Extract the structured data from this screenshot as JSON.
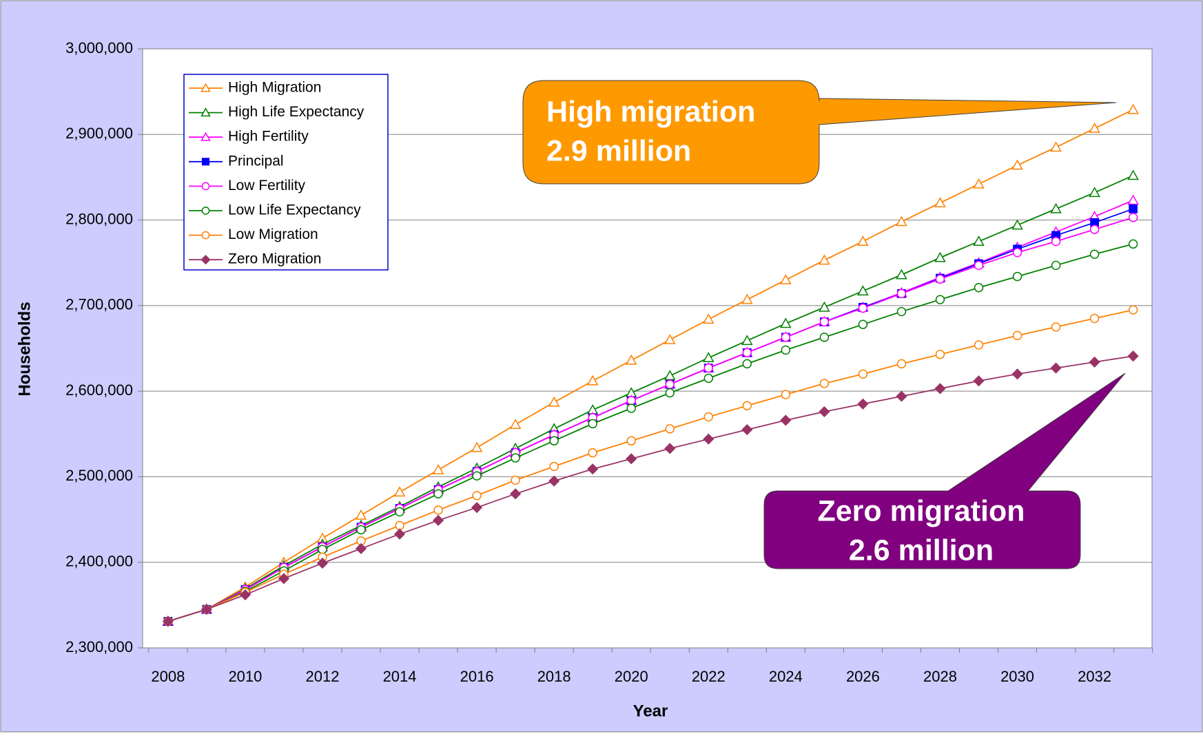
{
  "chart_data": {
    "type": "line",
    "x_label": "Year",
    "y_label": "Households",
    "categories": [
      "2008",
      null,
      "2010",
      null,
      "2012",
      null,
      "2014",
      null,
      "2016",
      null,
      "2018",
      null,
      "2020",
      null,
      "2022",
      null,
      "2024",
      null,
      "2026",
      null,
      "2028",
      null,
      "2030",
      null,
      "2032",
      null
    ],
    "ylim": [
      2300000,
      3000000
    ],
    "yticks": [
      {
        "value": 2300000,
        "label": "2,300,000"
      },
      {
        "value": 2400000,
        "label": "2,400,000"
      },
      {
        "value": 2500000,
        "label": "2,500,000"
      },
      {
        "value": 2600000,
        "label": "2,600,000"
      },
      {
        "value": 2700000,
        "label": "2,700,000"
      },
      {
        "value": 2800000,
        "label": "2,800,000"
      },
      {
        "value": 2900000,
        "label": "2,900,000"
      },
      {
        "value": 3000000,
        "label": "3,000,000"
      }
    ],
    "grid": true,
    "legend": "upper left",
    "series": [
      {
        "name": "High Migration",
        "color": "#ff8000",
        "marker": "triangle-open",
        "values": [
          2331000,
          2345000,
          2371000,
          2400000,
          2428000,
          2455000,
          2482000,
          2508000,
          2534000,
          2561000,
          2587000,
          2612000,
          2636000,
          2660000,
          2684000,
          2707000,
          2730000,
          2753000,
          2775000,
          2798000,
          2820000,
          2842000,
          2864000,
          2885000,
          2907000,
          2929000
        ]
      },
      {
        "name": "High Life Expectancy",
        "color": "#008000",
        "marker": "triangle-open",
        "values": [
          2331000,
          2345000,
          2369000,
          2396000,
          2421000,
          2443000,
          2465000,
          2488000,
          2510000,
          2533000,
          2556000,
          2578000,
          2598000,
          2618000,
          2639000,
          2659000,
          2679000,
          2698000,
          2717000,
          2736000,
          2756000,
          2775000,
          2794000,
          2813000,
          2832000,
          2852000
        ]
      },
      {
        "name": "High Fertility",
        "color": "#ff00ff",
        "marker": "triangle-open",
        "values": [
          2331000,
          2345000,
          2368000,
          2394000,
          2418000,
          2441000,
          2463000,
          2485000,
          2506000,
          2528000,
          2549000,
          2569000,
          2589000,
          2608000,
          2627000,
          2645000,
          2663000,
          2681000,
          2698000,
          2715000,
          2733000,
          2750000,
          2768000,
          2786000,
          2804000,
          2823000
        ]
      },
      {
        "name": "Principal",
        "color": "#0000ff",
        "marker": "square",
        "values": [
          2331000,
          2345000,
          2368000,
          2394000,
          2418000,
          2441000,
          2463000,
          2485000,
          2506000,
          2528000,
          2549000,
          2569000,
          2589000,
          2608000,
          2627000,
          2645000,
          2663000,
          2681000,
          2698000,
          2714000,
          2732000,
          2749000,
          2766000,
          2782000,
          2797000,
          2813000
        ]
      },
      {
        "name": "Low Fertility",
        "color": "#ff00ff",
        "marker": "circle-open",
        "values": [
          2331000,
          2345000,
          2368000,
          2394000,
          2418000,
          2441000,
          2463000,
          2485000,
          2506000,
          2528000,
          2549000,
          2569000,
          2589000,
          2608000,
          2627000,
          2645000,
          2663000,
          2681000,
          2697000,
          2714000,
          2731000,
          2747000,
          2762000,
          2775000,
          2789000,
          2803000
        ]
      },
      {
        "name": "Low Life Expectancy",
        "color": "#008000",
        "marker": "circle-open",
        "values": [
          2331000,
          2345000,
          2366000,
          2390000,
          2415000,
          2438000,
          2459000,
          2480000,
          2501000,
          2522000,
          2542000,
          2562000,
          2580000,
          2598000,
          2615000,
          2632000,
          2648000,
          2663000,
          2678000,
          2693000,
          2707000,
          2721000,
          2734000,
          2747000,
          2760000,
          2772000
        ]
      },
      {
        "name": "Low Migration",
        "color": "#ff8000",
        "marker": "circle-open",
        "values": [
          2331000,
          2345000,
          2365000,
          2386000,
          2406000,
          2425000,
          2443000,
          2461000,
          2478000,
          2496000,
          2512000,
          2528000,
          2542000,
          2556000,
          2570000,
          2583000,
          2596000,
          2609000,
          2620000,
          2632000,
          2643000,
          2654000,
          2665000,
          2675000,
          2685000,
          2695000
        ]
      },
      {
        "name": "Zero Migration",
        "color": "#993366",
        "marker": "diamond",
        "values": [
          2331000,
          2345000,
          2362000,
          2381000,
          2399000,
          2416000,
          2433000,
          2449000,
          2464000,
          2480000,
          2495000,
          2509000,
          2521000,
          2533000,
          2544000,
          2555000,
          2566000,
          2576000,
          2585000,
          2594000,
          2603000,
          2612000,
          2620000,
          2627000,
          2634000,
          2641000
        ]
      }
    ],
    "annotations": [
      {
        "lines": [
          "High migration",
          "2.9 million"
        ],
        "color": "#ff9900",
        "text_color": "#ffffff"
      },
      {
        "lines": [
          "Zero migration",
          "2.6 million"
        ],
        "color": "#800080",
        "text_color": "#ffffff"
      }
    ]
  }
}
